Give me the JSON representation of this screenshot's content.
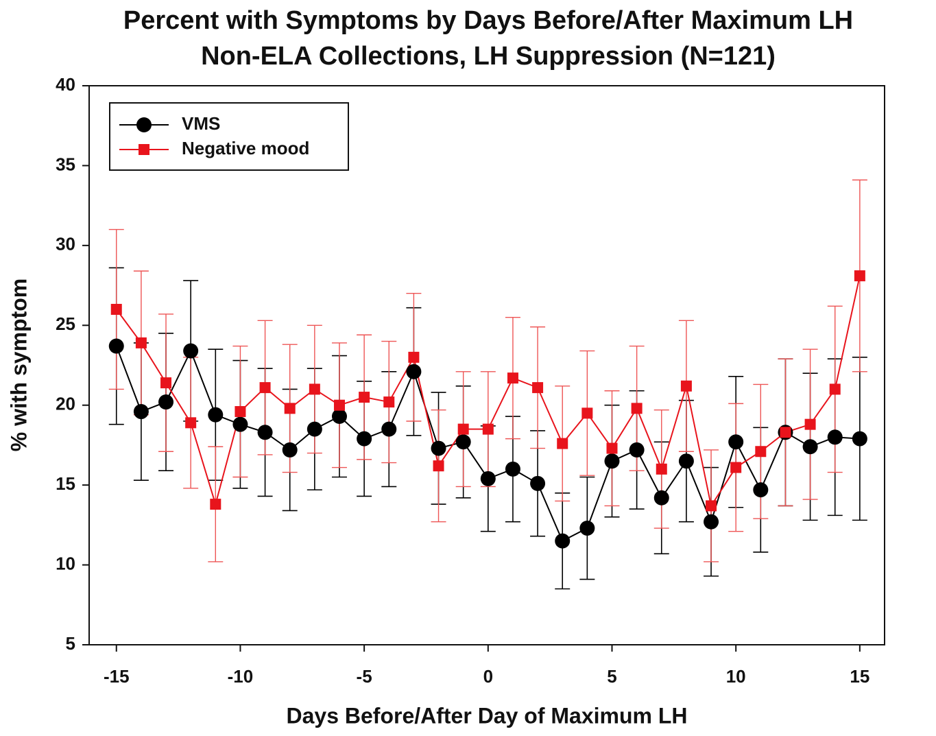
{
  "chart_data": {
    "type": "line",
    "title": "Percent with Symptoms by Days Before/After Maximum LH",
    "subtitle": "Non-ELA Collections, LH Suppression (N=121)",
    "x_label": "Days Before/After Day of Maximum LH",
    "y_label": "% with symptom",
    "x": [
      -15,
      -14,
      -13,
      -12,
      -11,
      -10,
      -9,
      -8,
      -7,
      -6,
      -5,
      -4,
      -3,
      -2,
      -1,
      0,
      1,
      2,
      3,
      4,
      5,
      6,
      7,
      8,
      9,
      10,
      11,
      12,
      13,
      14,
      15
    ],
    "series": [
      {
        "name": "VMS",
        "color": "#000000",
        "marker": "circle",
        "values": [
          23.7,
          19.6,
          20.2,
          23.4,
          19.4,
          18.8,
          18.3,
          17.2,
          18.5,
          19.3,
          17.9,
          18.5,
          22.1,
          17.3,
          17.7,
          15.4,
          16.0,
          15.1,
          11.5,
          12.3,
          16.5,
          17.2,
          14.2,
          16.5,
          12.7,
          17.7,
          14.7,
          18.3,
          17.4,
          18.0,
          17.9
        ],
        "errors": [
          4.9,
          4.3,
          4.3,
          4.4,
          4.1,
          4.0,
          4.0,
          3.8,
          3.8,
          3.8,
          3.6,
          3.6,
          4.0,
          3.5,
          3.5,
          3.3,
          3.3,
          3.3,
          3.0,
          3.2,
          3.5,
          3.7,
          3.5,
          3.8,
          3.4,
          4.1,
          3.9,
          4.6,
          4.6,
          4.9,
          5.1
        ]
      },
      {
        "name": "Negative mood",
        "color": "#e8141c",
        "marker": "square",
        "values": [
          26.0,
          23.9,
          21.4,
          18.9,
          13.8,
          19.6,
          21.1,
          19.8,
          21.0,
          20.0,
          20.5,
          20.2,
          23.0,
          16.2,
          18.5,
          18.5,
          21.7,
          21.1,
          17.6,
          19.5,
          17.3,
          19.8,
          16.0,
          21.2,
          13.7,
          16.1,
          17.1,
          18.3,
          18.8,
          21.0,
          28.1
        ],
        "errors": [
          5.0,
          4.5,
          4.3,
          4.1,
          3.6,
          4.1,
          4.2,
          4.0,
          4.0,
          3.9,
          3.9,
          3.8,
          4.0,
          3.5,
          3.6,
          3.6,
          3.8,
          3.8,
          3.6,
          3.9,
          3.6,
          3.9,
          3.7,
          4.1,
          3.5,
          4.0,
          4.2,
          4.6,
          4.7,
          5.2,
          6.0
        ]
      }
    ],
    "xlim": [
      -16.1,
      16
    ],
    "xticks": [
      -15,
      -10,
      -5,
      0,
      5,
      10,
      15
    ],
    "ylim": [
      5,
      40
    ],
    "yticks": [
      5,
      10,
      15,
      20,
      25,
      30,
      35,
      40
    ],
    "legend": "top-left"
  }
}
